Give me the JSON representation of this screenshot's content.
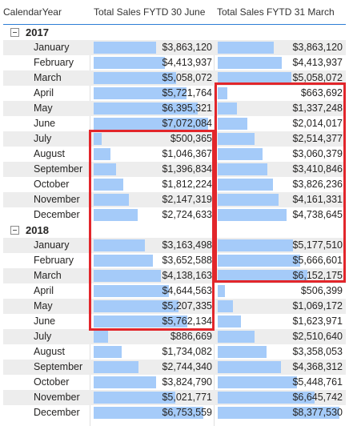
{
  "columns": {
    "year": "CalendarYear",
    "fytd_june": "Total Sales FYTD 30 June",
    "fytd_march": "Total Sales FYTD 31 March"
  },
  "colors": {
    "bar": "#a5cbf9",
    "highlight": "#e2262b",
    "header_rule": "#2d7ed6",
    "row_shade": "#ededed"
  },
  "icons": {
    "group_toggle": "minus-square-icon"
  },
  "rows": [
    {
      "kind": "group",
      "label": "2017"
    },
    {
      "kind": "month",
      "label": "January",
      "june": "$3,863,120",
      "june_v": 3863120,
      "march": "$3,863,120",
      "march_v": 3863120
    },
    {
      "kind": "month",
      "label": "February",
      "june": "$4,413,937",
      "june_v": 4413937,
      "march": "$4,413,937",
      "march_v": 4413937
    },
    {
      "kind": "month",
      "label": "March",
      "june": "$5,058,072",
      "june_v": 5058072,
      "march": "$5,058,072",
      "march_v": 5058072
    },
    {
      "kind": "month",
      "label": "April",
      "june": "$5,721,764",
      "june_v": 5721764,
      "march": "$663,692",
      "march_v": 663692
    },
    {
      "kind": "month",
      "label": "May",
      "june": "$6,395,321",
      "june_v": 6395321,
      "march": "$1,337,248",
      "march_v": 1337248
    },
    {
      "kind": "month",
      "label": "June",
      "june": "$7,072,084",
      "june_v": 7072084,
      "march": "$2,014,017",
      "march_v": 2014017
    },
    {
      "kind": "month",
      "label": "July",
      "june": "$500,365",
      "june_v": 500365,
      "march": "$2,514,377",
      "march_v": 2514377
    },
    {
      "kind": "month",
      "label": "August",
      "june": "$1,046,367",
      "june_v": 1046367,
      "march": "$3,060,379",
      "march_v": 3060379
    },
    {
      "kind": "month",
      "label": "September",
      "june": "$1,396,834",
      "june_v": 1396834,
      "march": "$3,410,846",
      "march_v": 3410846
    },
    {
      "kind": "month",
      "label": "October",
      "june": "$1,812,224",
      "june_v": 1812224,
      "march": "$3,826,236",
      "march_v": 3826236
    },
    {
      "kind": "month",
      "label": "November",
      "june": "$2,147,319",
      "june_v": 2147319,
      "march": "$4,161,331",
      "march_v": 4161331
    },
    {
      "kind": "month",
      "label": "December",
      "june": "$2,724,633",
      "june_v": 2724633,
      "march": "$4,738,645",
      "march_v": 4738645
    },
    {
      "kind": "group",
      "label": "2018"
    },
    {
      "kind": "month",
      "label": "January",
      "june": "$3,163,498",
      "june_v": 3163498,
      "march": "$5,177,510",
      "march_v": 5177510
    },
    {
      "kind": "month",
      "label": "February",
      "june": "$3,652,588",
      "june_v": 3652588,
      "march": "$5,666,601",
      "march_v": 5666601
    },
    {
      "kind": "month",
      "label": "March",
      "june": "$4,138,163",
      "june_v": 4138163,
      "march": "$6,152,175",
      "march_v": 6152175
    },
    {
      "kind": "month",
      "label": "April",
      "june": "$4,644,563",
      "june_v": 4644563,
      "march": "$506,399",
      "march_v": 506399
    },
    {
      "kind": "month",
      "label": "May",
      "june": "$5,207,335",
      "june_v": 5207335,
      "march": "$1,069,172",
      "march_v": 1069172
    },
    {
      "kind": "month",
      "label": "June",
      "june": "$5,762,134",
      "june_v": 5762134,
      "march": "$1,623,971",
      "march_v": 1623971
    },
    {
      "kind": "month",
      "label": "July",
      "june": "$886,669",
      "june_v": 886669,
      "march": "$2,510,640",
      "march_v": 2510640
    },
    {
      "kind": "month",
      "label": "August",
      "june": "$1,734,082",
      "june_v": 1734082,
      "march": "$3,358,053",
      "march_v": 3358053
    },
    {
      "kind": "month",
      "label": "September",
      "june": "$2,744,340",
      "june_v": 2744340,
      "march": "$4,368,312",
      "march_v": 4368312
    },
    {
      "kind": "month",
      "label": "October",
      "june": "$3,824,790",
      "june_v": 3824790,
      "march": "$5,448,761",
      "march_v": 5448761
    },
    {
      "kind": "month",
      "label": "November",
      "june": "$5,021,771",
      "june_v": 5021771,
      "march": "$6,645,742",
      "march_v": 6645742
    },
    {
      "kind": "month",
      "label": "December",
      "june": "$6,753,559",
      "june_v": 6753559,
      "march": "$8,377,530",
      "march_v": 8377530
    }
  ]
}
